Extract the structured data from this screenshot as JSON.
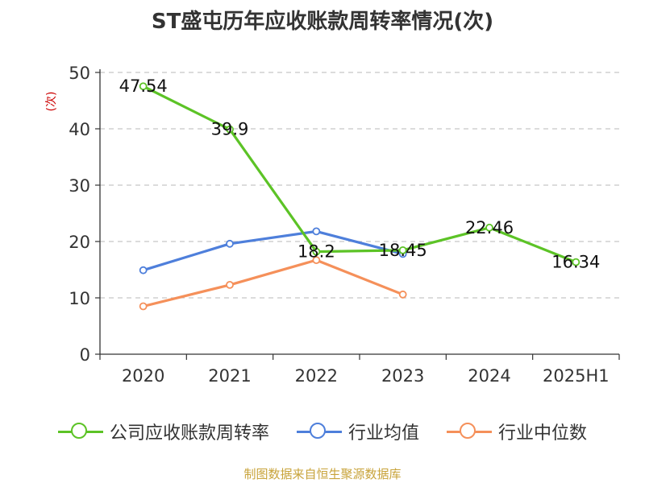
{
  "title": "ST盛屯历年应收账款周转率情况(次)",
  "source": "制图数据来自恒生聚源数据库",
  "chart_data": {
    "type": "line",
    "categories": [
      "2020",
      "2021",
      "2022",
      "2023",
      "2024",
      "2025H1"
    ],
    "ylabel": "(次)",
    "xlabel": "",
    "ylim": [
      0,
      50
    ],
    "yticks": [
      "0",
      "10",
      "20",
      "30",
      "40",
      "50"
    ],
    "grid": true,
    "legend_position": "bottom",
    "series": [
      {
        "name": "公司应收账款周转率",
        "color": "#5cc326",
        "values": [
          47.54,
          39.9,
          18.2,
          18.45,
          22.46,
          16.34
        ],
        "labels": [
          "47.54",
          "39.9",
          "18.2",
          "18.45",
          "22.46",
          "16.34"
        ]
      },
      {
        "name": "行业均值",
        "color": "#4e7fdb",
        "values": [
          14.9,
          19.6,
          21.8,
          17.8,
          null,
          null
        ]
      },
      {
        "name": "行业中位数",
        "color": "#f5905a",
        "values": [
          8.5,
          12.3,
          16.7,
          10.6,
          null,
          null
        ]
      }
    ]
  }
}
